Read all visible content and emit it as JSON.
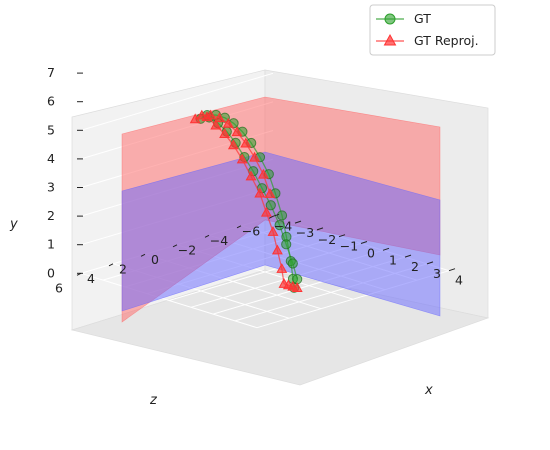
{
  "chart_data": {
    "type": "scatter",
    "projection": "3d",
    "xlabel": "x",
    "ylabel": "y",
    "zlabel": "z",
    "xlim": [
      -4,
      4
    ],
    "ylim": [
      0,
      7
    ],
    "zlim": [
      -6,
      6
    ],
    "x_ticks": [
      "−4",
      "−3",
      "−2",
      "−1",
      "0",
      "1",
      "2",
      "3",
      "4"
    ],
    "y_ticks": [
      "0",
      "1",
      "2",
      "3",
      "4",
      "5",
      "6",
      "7"
    ],
    "z_ticks": [
      "−6",
      "−4",
      "−2",
      "0",
      "2",
      "4",
      "6"
    ],
    "legend_position": "top-right",
    "series": [
      {
        "name": "GT",
        "marker": "circle",
        "color": "#2ca02c",
        "points": [
          [
            -2.2,
            5.0,
            1.0
          ],
          [
            -1.9,
            5.2,
            1.0
          ],
          [
            -1.5,
            5.3,
            1.0
          ],
          [
            -1.1,
            5.3,
            1.0
          ],
          [
            -0.7,
            5.2,
            1.0
          ],
          [
            -0.3,
            5.0,
            1.0
          ],
          [
            0.1,
            4.7,
            1.0
          ],
          [
            0.5,
            4.3,
            1.0
          ],
          [
            0.9,
            3.8,
            1.0
          ],
          [
            1.2,
            3.2,
            1.0
          ],
          [
            1.5,
            2.5,
            1.0
          ],
          [
            1.7,
            1.8,
            1.0
          ],
          [
            1.9,
            1.0,
            1.0
          ],
          [
            2.0,
            0.4,
            1.0
          ],
          [
            2.05,
            0.1,
            1.0
          ],
          [
            -2.1,
            5.0,
            0.6
          ],
          [
            -1.7,
            4.9,
            0.6
          ],
          [
            -1.3,
            4.7,
            0.6
          ],
          [
            -0.9,
            4.4,
            0.6
          ],
          [
            -0.5,
            4.0,
            0.6
          ],
          [
            -0.1,
            3.6,
            0.6
          ],
          [
            0.3,
            3.1,
            0.6
          ],
          [
            0.7,
            2.6,
            0.6
          ],
          [
            1.1,
            2.0,
            0.6
          ],
          [
            1.4,
            1.4,
            0.6
          ],
          [
            1.7,
            0.8,
            0.6
          ],
          [
            1.9,
            0.3,
            0.6
          ]
        ]
      },
      {
        "name": "GT Reproj.",
        "marker": "triangle",
        "color": "#ff3333",
        "points": [
          [
            -2.3,
            5.0,
            1.2
          ],
          [
            -2.0,
            5.2,
            1.2
          ],
          [
            -1.6,
            5.3,
            1.2
          ],
          [
            -1.2,
            5.3,
            1.2
          ],
          [
            -0.8,
            5.2,
            1.2
          ],
          [
            -0.4,
            5.0,
            1.2
          ],
          [
            0.0,
            4.7,
            1.2
          ],
          [
            0.4,
            4.3,
            1.2
          ],
          [
            0.8,
            3.8,
            1.2
          ],
          [
            1.1,
            3.2,
            1.2
          ],
          [
            -2.2,
            5.0,
            0.6
          ],
          [
            -1.8,
            4.8,
            0.6
          ],
          [
            -1.4,
            4.6,
            0.6
          ],
          [
            -1.0,
            4.3,
            0.6
          ],
          [
            -0.6,
            3.9,
            0.6
          ],
          [
            -0.2,
            3.4,
            0.6
          ],
          [
            0.2,
            2.9,
            0.6
          ],
          [
            0.5,
            2.3,
            0.6
          ],
          [
            0.8,
            1.7,
            0.6
          ],
          [
            1.0,
            1.1,
            0.6
          ],
          [
            1.2,
            0.5,
            0.6
          ],
          [
            1.3,
            0.0,
            0.6
          ],
          [
            1.5,
            0.0,
            0.6
          ],
          [
            1.7,
            0.0,
            0.6
          ],
          [
            1.9,
            0.0,
            0.6
          ]
        ]
      }
    ],
    "planes": [
      {
        "color": "#ff6666",
        "alpha": 0.5
      },
      {
        "color": "#6666ff",
        "alpha": 0.5
      }
    ]
  }
}
